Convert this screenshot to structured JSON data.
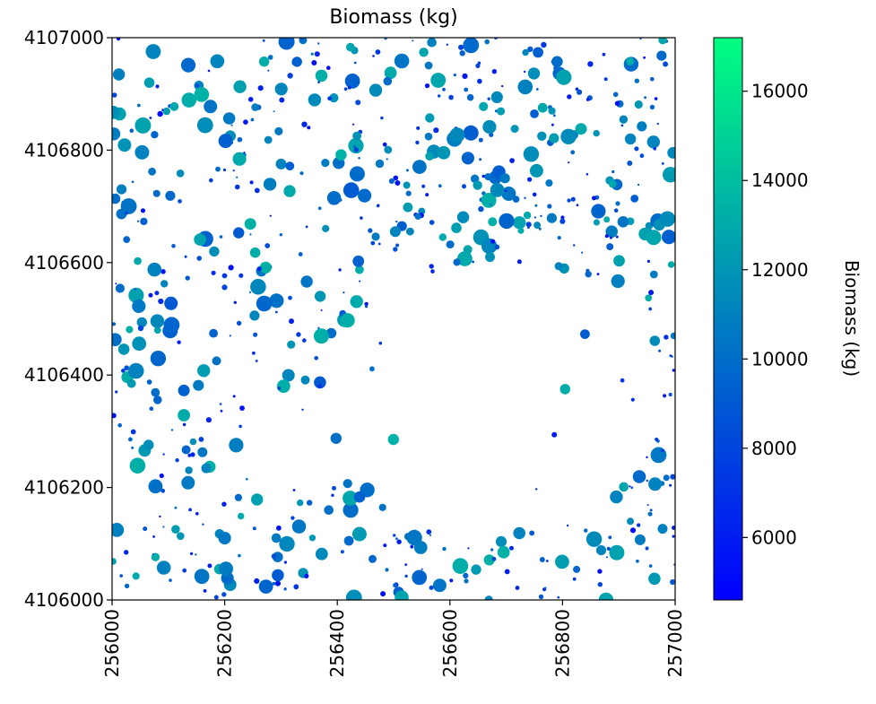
{
  "chart_data": {
    "type": "heatmap",
    "title": "Biomass (kg)",
    "xlabel": "",
    "ylabel": "",
    "xlim": [
      256000,
      257000
    ],
    "ylim": [
      4106000,
      4107000
    ],
    "x_ticks": [
      "256000",
      "256200",
      "256400",
      "256600",
      "256800",
      "257000"
    ],
    "y_ticks": [
      "4106000",
      "4106200",
      "4106400",
      "4106600",
      "4106800",
      "4107000"
    ],
    "colorbar": {
      "label": "Biomass (kg)",
      "range": [
        4600,
        17200
      ],
      "ticks": [
        "6000",
        "8000",
        "10000",
        "12000",
        "14000",
        "16000"
      ],
      "colormap": "winter",
      "color_low": "#0000ff",
      "color_high": "#00ff80"
    },
    "grid": false,
    "empty_region_color": "#ffffff"
  }
}
